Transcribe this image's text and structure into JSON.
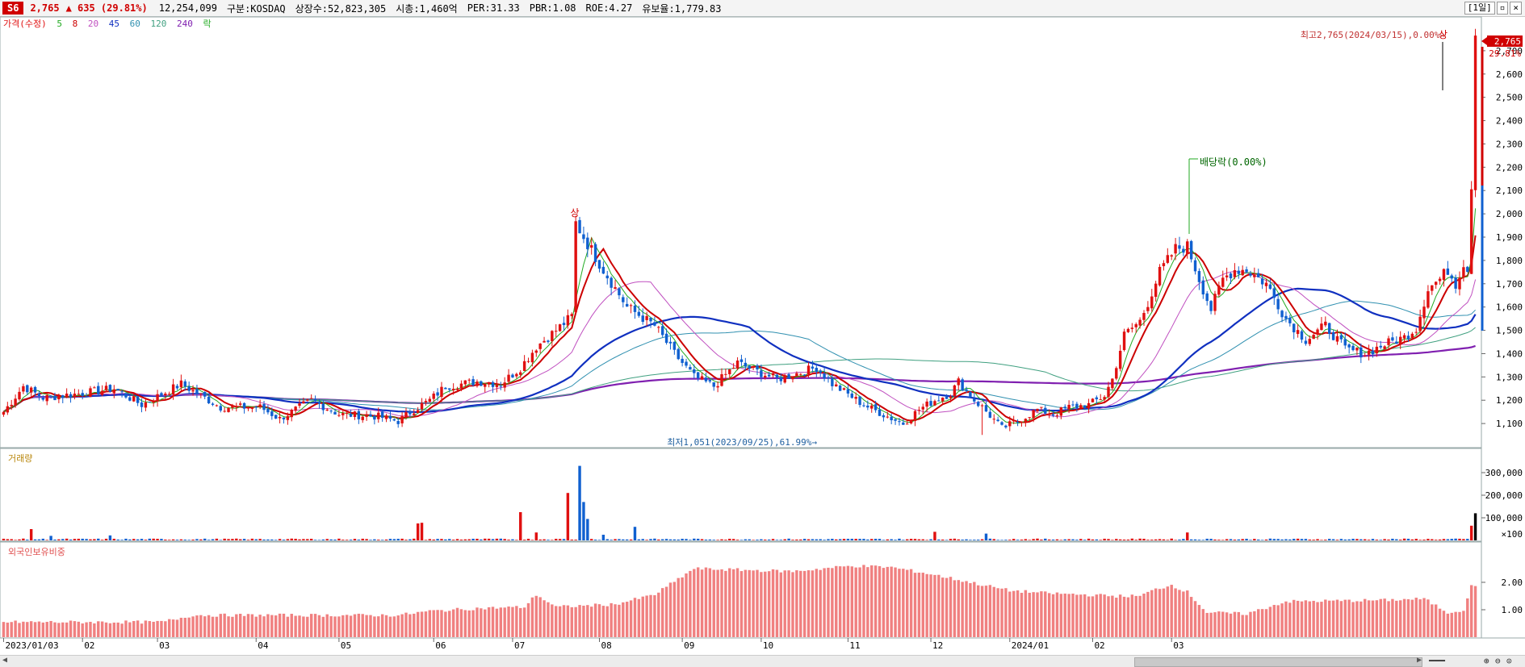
{
  "header": {
    "badge": "S6",
    "price": "2,765",
    "change": "▲ 635 (29.81%)",
    "volume": "12,254,099",
    "market": "구분:KOSDAQ",
    "shares": "상장수:52,823,305",
    "cap": "시총:1,460억",
    "per": "PER:31.33",
    "pbr": "PBR:1.08",
    "roe": "ROE:4.27",
    "retention": "유보율:1,779.83",
    "period_button": "[1일]"
  },
  "legend": {
    "price": "가격(수정)",
    "ma5": "5",
    "ma8": "8",
    "ma20": "20",
    "ma45": "45",
    "ma60": "60",
    "ma120": "120",
    "ma240": "240",
    "ex": "락"
  },
  "colors": {
    "up": "#e01010",
    "down": "#1060d0",
    "ma5": "#22aa22",
    "ma8": "#cc0000",
    "ma20": "#c050c0",
    "ma45": "#1030c0",
    "ma60": "#3090b0",
    "ma120": "#40a080",
    "ma240": "#8020b0",
    "foreign": "#f08080"
  },
  "annotations": {
    "high": "최고2,765(2024/03/15),0.00%→",
    "low": "최저1,051(2023/09/25),61.99%→",
    "dividend": "배당락(0.00%)",
    "up_limit": "상",
    "current_tag": "2,765",
    "current_pct": "29.81%"
  },
  "panels": {
    "volume": "거래량",
    "foreign": "외국인보유비중"
  },
  "chart_data": [
    {
      "type": "candlestick",
      "ylim": [
        1000,
        2800
      ],
      "yticks": [
        1100,
        1200,
        1300,
        1400,
        1500,
        1600,
        1700,
        1800,
        1900,
        2000,
        2100,
        2200,
        2300,
        2400,
        2500,
        2600,
        2700
      ],
      "ytick_labels": [
        "1,100",
        "1,200",
        "1,300",
        "1,400",
        "1,500",
        "1,600",
        "1,700",
        "1,800",
        "1,900",
        "2,000",
        "2,100",
        "2,200",
        "2,300",
        "2,400",
        "2,500",
        "2,600",
        "2,700"
      ],
      "xticks": [
        "2023/01/03",
        "02",
        "03",
        "04",
        "05",
        "06",
        "07",
        "08",
        "09",
        "10",
        "11",
        "12",
        "2024/01",
        "02",
        "03"
      ],
      "anchors": [
        [
          0,
          1150
        ],
        [
          5,
          1260
        ],
        [
          10,
          1210
        ],
        [
          20,
          1230
        ],
        [
          28,
          1250
        ],
        [
          35,
          1180
        ],
        [
          45,
          1270
        ],
        [
          55,
          1170
        ],
        [
          65,
          1170
        ],
        [
          70,
          1120
        ],
        [
          78,
          1200
        ],
        [
          85,
          1140
        ],
        [
          95,
          1130
        ],
        [
          100,
          1110
        ],
        [
          104,
          1160
        ],
        [
          108,
          1200
        ],
        [
          112,
          1260
        ],
        [
          120,
          1280
        ],
        [
          126,
          1270
        ],
        [
          131,
          1340
        ],
        [
          135,
          1430
        ],
        [
          140,
          1500
        ],
        [
          144,
          1560
        ],
        [
          145,
          1960
        ],
        [
          147,
          1900
        ],
        [
          152,
          1760
        ],
        [
          158,
          1600
        ],
        [
          165,
          1520
        ],
        [
          170,
          1400
        ],
        [
          175,
          1300
        ],
        [
          180,
          1260
        ],
        [
          186,
          1360
        ],
        [
          190,
          1330
        ],
        [
          196,
          1290
        ],
        [
          200,
          1310
        ],
        [
          206,
          1340
        ],
        [
          210,
          1270
        ],
        [
          218,
          1180
        ],
        [
          224,
          1130
        ],
        [
          228,
          1100
        ],
        [
          232,
          1160
        ],
        [
          236,
          1200
        ],
        [
          240,
          1230
        ],
        [
          242,
          1280
        ],
        [
          246,
          1200
        ],
        [
          248,
          1170
        ],
        [
          253,
          1080
        ],
        [
          257,
          1110
        ],
        [
          262,
          1160
        ],
        [
          266,
          1140
        ],
        [
          270,
          1170
        ],
        [
          275,
          1180
        ],
        [
          279,
          1220
        ],
        [
          281,
          1290
        ],
        [
          284,
          1480
        ],
        [
          288,
          1540
        ],
        [
          290,
          1620
        ],
        [
          293,
          1750
        ],
        [
          297,
          1850
        ],
        [
          300,
          1860
        ],
        [
          303,
          1720
        ],
        [
          306,
          1590
        ],
        [
          309,
          1720
        ],
        [
          312,
          1760
        ],
        [
          315,
          1760
        ],
        [
          320,
          1700
        ],
        [
          325,
          1550
        ],
        [
          330,
          1460
        ],
        [
          335,
          1520
        ],
        [
          340,
          1420
        ],
        [
          345,
          1400
        ],
        [
          350,
          1440
        ],
        [
          355,
          1470
        ],
        [
          358,
          1510
        ],
        [
          361,
          1680
        ],
        [
          364,
          1720
        ],
        [
          366,
          1760
        ],
        [
          368,
          1700
        ],
        [
          370,
          1790
        ],
        [
          371,
          1760
        ],
        [
          372,
          2130
        ],
        [
          373,
          2765
        ]
      ],
      "lows": [
        {
          "label": "최저",
          "value": 1051,
          "date": "2023/09/25"
        }
      ],
      "high": {
        "value": 2765,
        "date": "2024/03/15"
      }
    },
    {
      "type": "bar",
      "name": "거래량",
      "ylim": [
        0,
        350000
      ],
      "yticks": [
        100000,
        200000,
        300000
      ],
      "ytick_labels": [
        "×100",
        "100,000",
        "200,000",
        "300,000"
      ],
      "spikes": [
        [
          7,
          50000
        ],
        [
          12,
          20000
        ],
        [
          27,
          22000
        ],
        [
          105,
          75000
        ],
        [
          106,
          78000
        ],
        [
          131,
          125000
        ],
        [
          135,
          35000
        ],
        [
          143,
          210000
        ],
        [
          146,
          330000
        ],
        [
          147,
          170000
        ],
        [
          148,
          95000
        ],
        [
          152,
          25000
        ],
        [
          160,
          60000
        ],
        [
          236,
          38000
        ],
        [
          249,
          30000
        ],
        [
          300,
          35000
        ],
        [
          373,
          120000
        ],
        [
          372,
          65000
        ]
      ]
    },
    {
      "type": "bar",
      "name": "외국인보유비중",
      "ylim": [
        0,
        3.0
      ],
      "yticks": [
        1.0,
        2.0
      ],
      "ytick_labels": [
        "1.00",
        "2.00"
      ],
      "anchors": [
        [
          0,
          0.55
        ],
        [
          40,
          0.55
        ],
        [
          48,
          0.8
        ],
        [
          100,
          0.8
        ],
        [
          108,
          0.95
        ],
        [
          120,
          1.05
        ],
        [
          132,
          1.1
        ],
        [
          135,
          1.55
        ],
        [
          140,
          1.1
        ],
        [
          155,
          1.2
        ],
        [
          165,
          1.55
        ],
        [
          175,
          2.5
        ],
        [
          200,
          2.4
        ],
        [
          215,
          2.6
        ],
        [
          225,
          2.55
        ],
        [
          235,
          2.3
        ],
        [
          245,
          2.0
        ],
        [
          255,
          1.7
        ],
        [
          265,
          1.6
        ],
        [
          282,
          1.5
        ],
        [
          288,
          1.5
        ],
        [
          292,
          1.75
        ],
        [
          296,
          1.9
        ],
        [
          300,
          1.65
        ],
        [
          305,
          0.9
        ],
        [
          315,
          0.85
        ],
        [
          325,
          1.3
        ],
        [
          350,
          1.35
        ],
        [
          360,
          1.4
        ],
        [
          366,
          0.9
        ],
        [
          370,
          1.0
        ],
        [
          372,
          1.85
        ],
        [
          373,
          1.85
        ]
      ]
    }
  ]
}
